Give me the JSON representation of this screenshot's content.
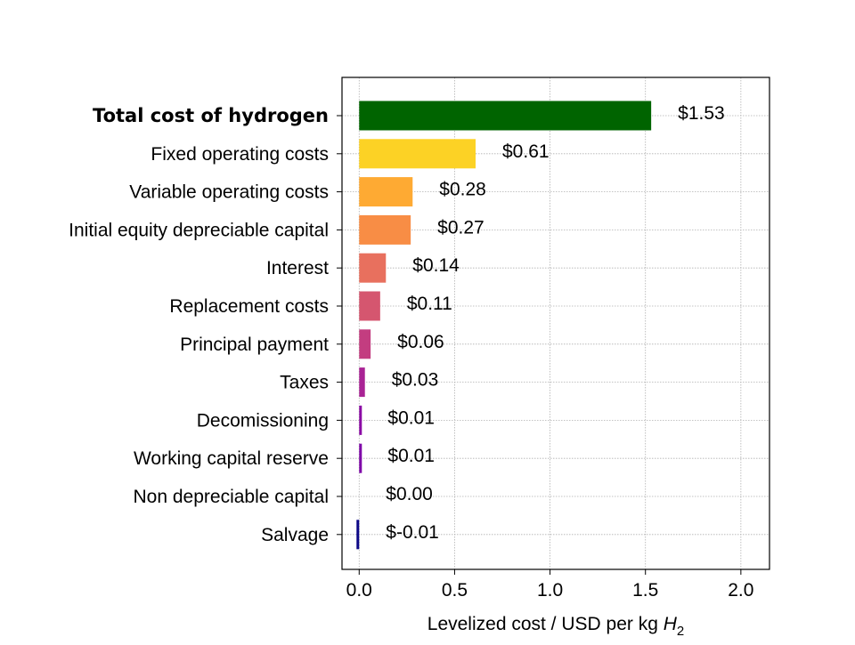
{
  "chart_data": {
    "type": "bar",
    "orientation": "horizontal",
    "categories": [
      "Total cost of hydrogen",
      "Fixed operating costs",
      "Variable operating costs",
      "Initial equity depreciable capital",
      "Interest",
      "Replacement costs",
      "Principal payment",
      "Taxes",
      "Decomissioning",
      "Working capital reserve",
      "Non depreciable capital",
      "Salvage"
    ],
    "values": [
      1.53,
      0.61,
      0.28,
      0.27,
      0.14,
      0.11,
      0.06,
      0.03,
      0.01,
      0.01,
      0.0,
      -0.01
    ],
    "value_labels": [
      "$1.53",
      "$0.61",
      "$0.28",
      "$0.27",
      "$0.14",
      "$0.11",
      "$0.06",
      "$0.03",
      "$0.01",
      "$0.01",
      "$0.00",
      "$-0.01"
    ],
    "bar_colors": [
      "#006400",
      "#fcd225",
      "#feaa33",
      "#f88d45",
      "#e8705e",
      "#d5566f",
      "#c33d80",
      "#a92395",
      "#8b0aa5",
      "#7e03a8",
      "#5d01a6",
      "#0d0887"
    ],
    "bold_categories": [
      "Total cost of hydrogen"
    ],
    "xlabel": "Levelized cost / USD per kg H2",
    "xlabel_main": "Levelized cost / USD per kg ",
    "xlabel_symbol": "H",
    "xlabel_subscript": "2",
    "x_ticks": [
      0.0,
      0.5,
      1.0,
      1.5,
      2.0
    ],
    "x_tick_labels": [
      "0.0",
      "0.5",
      "1.0",
      "1.5",
      "2.0"
    ],
    "xlim": [
      -0.09,
      2.15
    ],
    "grid": true,
    "legend": "none"
  }
}
